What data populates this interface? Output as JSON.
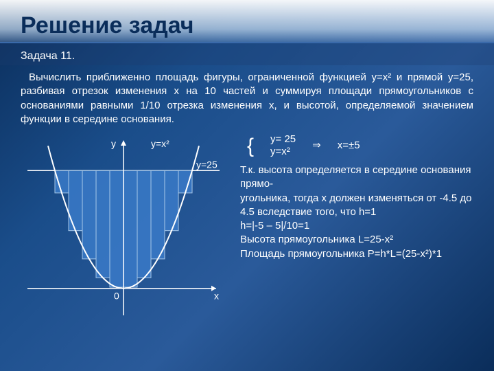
{
  "title": "Решение задач",
  "subtitle": "Задача 11.",
  "body": "Вычислить приближенно площадь фигуры, ограниченной функцией y=x² и прямой y=25, разбивая отрезок изменения x на 10 частей и суммируя площади прямоугольников с основаниями равными 1/10 отрезка изменения x, и высотой, определяемой значением функции в середине основания.",
  "figure": {
    "label_y": "y",
    "label_yx2": "y=x²",
    "label_y25": "y=25",
    "label_x": "x",
    "label_0": "0",
    "axis_color": "#ffffff",
    "bar_fill": "#3a7ac8",
    "bar_stroke": "#a8c8e8",
    "curve_color": "#ffffff",
    "n_bars": 10
  },
  "equations": {
    "line1": "y= 25",
    "line2": "y=x²",
    "arrow": "⇒",
    "result": "x=±5"
  },
  "explain": [
    "Т.к. высота определяется в середине основания прямо-",
    "угольника, тогда x должен изменяться от -4.5 до 4.5 вследствие того, что h=1",
    "h=|-5 – 5|/10=1",
    "Высота прямоугольника L=25-x²",
    "Площадь прямоугольника P=h*L=(25-x²)*1"
  ]
}
